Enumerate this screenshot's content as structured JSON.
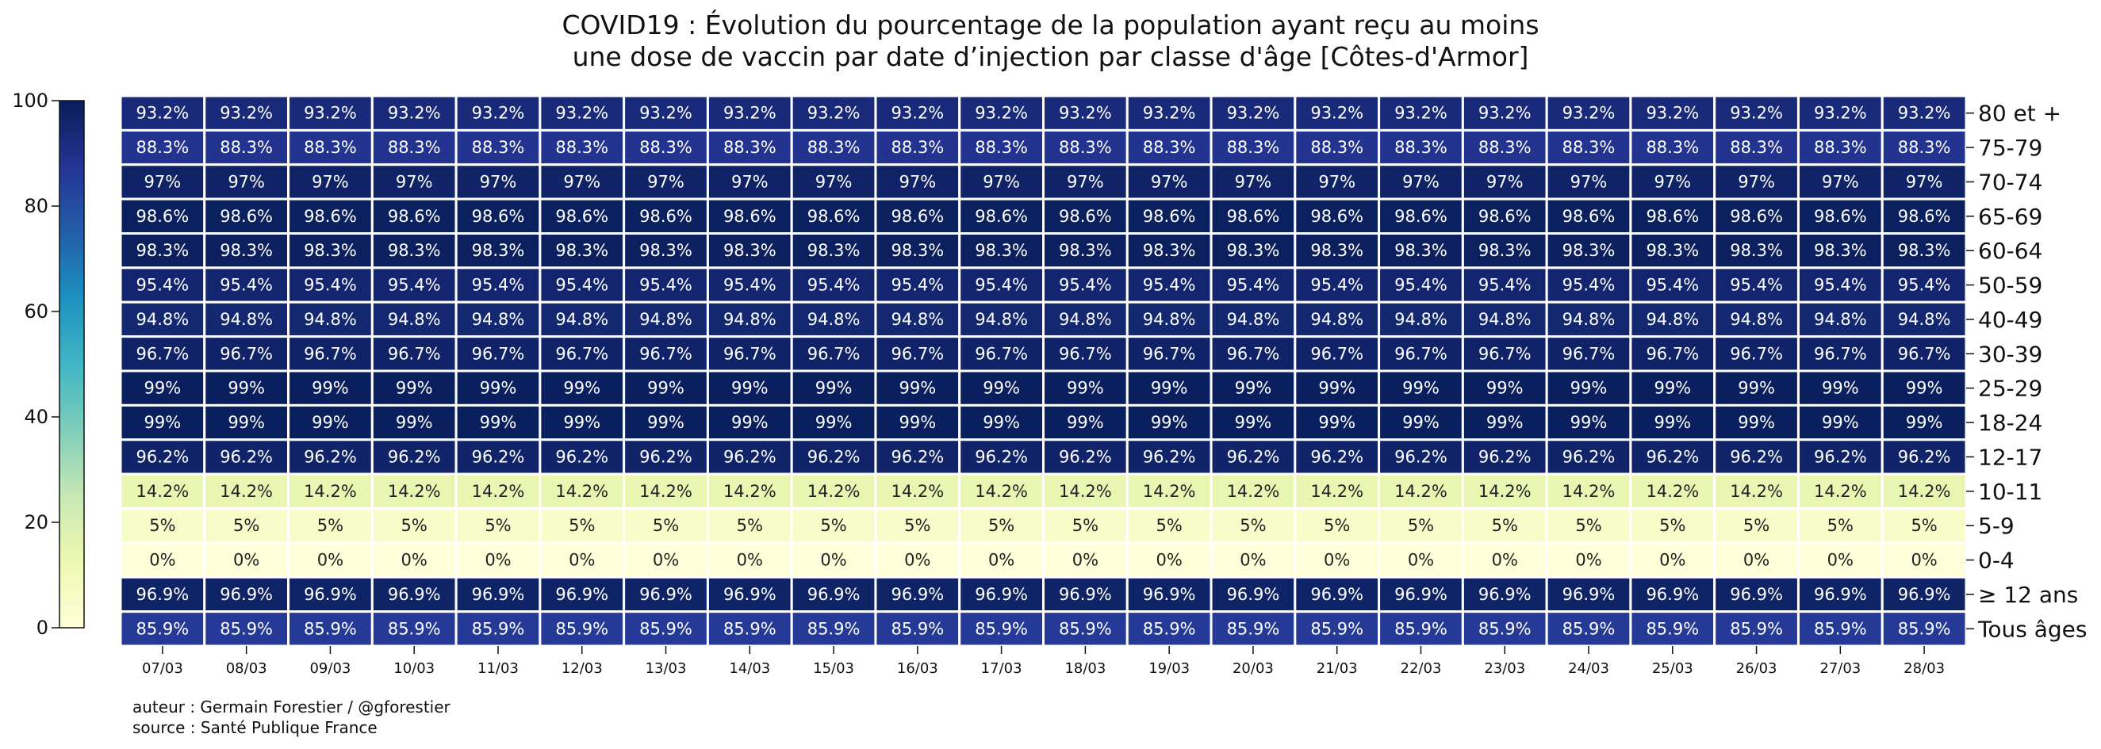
{
  "chart_data": {
    "type": "heatmap",
    "title": "COVID19 : Évolution du pourcentage de la population ayant reçu au moins\nune dose de vaccin par date d’injection par classe d'âge [Côtes-d'Armor]",
    "title_lines": [
      "COVID19 : Évolution du pourcentage de la population ayant reçu au moins",
      "une dose de vaccin par date d’injection par classe d'âge [Côtes-d'Armor]"
    ],
    "x": [
      "07/03",
      "08/03",
      "09/03",
      "10/03",
      "11/03",
      "12/03",
      "13/03",
      "14/03",
      "15/03",
      "16/03",
      "17/03",
      "18/03",
      "19/03",
      "20/03",
      "21/03",
      "22/03",
      "23/03",
      "24/03",
      "25/03",
      "26/03",
      "27/03",
      "28/03"
    ],
    "y": [
      "80 et +",
      "75-79",
      "70-74",
      "65-69",
      "60-64",
      "50-59",
      "40-49",
      "30-39",
      "25-29",
      "18-24",
      "12-17",
      "10-11",
      "5-9",
      "0-4",
      "≥ 12 ans",
      "Tous âges"
    ],
    "row_values": [
      93.2,
      88.3,
      97,
      98.6,
      98.3,
      95.4,
      94.8,
      96.7,
      99,
      99,
      96.2,
      14.2,
      5,
      0,
      96.9,
      85.9
    ],
    "value_suffix": "%",
    "colormap": "YlGnBu",
    "colorbar": {
      "range": [
        0,
        100
      ],
      "ticks": [
        "0",
        "20",
        "40",
        "60",
        "80",
        "100"
      ],
      "position": "left"
    },
    "grid": false
  },
  "footer": {
    "author": "auteur : Germain Forestier / @gforestier",
    "source": "source : Santé Publique France"
  }
}
